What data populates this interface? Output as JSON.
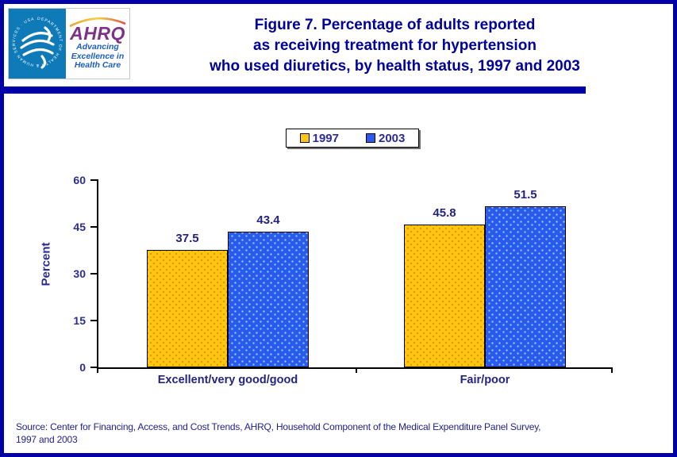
{
  "header": {
    "logo": {
      "seal_text": "DEPARTMENT OF HEALTH & HUMAN SERVICES · USA",
      "ahrq_text": "AHRQ",
      "tagline_line1": "Advancing",
      "tagline_line2": "Excellence in",
      "tagline_line3": "Health Care"
    },
    "title_line1": "Figure 7. Percentage of adults reported",
    "title_line2": "as receiving treatment for hypertension",
    "title_line3": "who used diuretics, by health status, 1997 and 2003"
  },
  "legend": {
    "items": [
      {
        "label": "1997",
        "color": "#FFC60F"
      },
      {
        "label": "2003",
        "color": "#2C59ED"
      }
    ]
  },
  "chart_data": {
    "type": "bar",
    "title": "Figure 7. Percentage of adults reported as receiving treatment for hypertension who used diuretics, by health status, 1997 and 2003",
    "categories": [
      "Excellent/very good/good",
      "Fair/poor"
    ],
    "series": [
      {
        "name": "1997",
        "color": "#FFC60F",
        "values": [
          37.5,
          45.8
        ]
      },
      {
        "name": "2003",
        "color": "#2C59ED",
        "values": [
          43.4,
          51.5
        ]
      }
    ],
    "xlabel": "",
    "ylabel": "Percent",
    "ylim": [
      0,
      60
    ],
    "yticks": [
      0,
      15,
      30,
      45,
      60
    ],
    "grid": false,
    "legend_position": "top-center",
    "value_labels": true
  },
  "source": {
    "line1": "Source: Center for Financing, Access, and Cost Trends, AHRQ, Household Component of the Medical Expenditure Panel Survey,",
    "line2": "1997 and 2003"
  },
  "colors": {
    "border": "#0000A6",
    "title": "#00009A",
    "axis_text": "#2B2B9B",
    "bar_1997": "#FFC60F",
    "bar_2003": "#2C59ED",
    "hhs_seal_bg": "#0E7AB8",
    "ahrq_purple": "#7D3189",
    "tagline_blue": "#1B5EBE"
  }
}
